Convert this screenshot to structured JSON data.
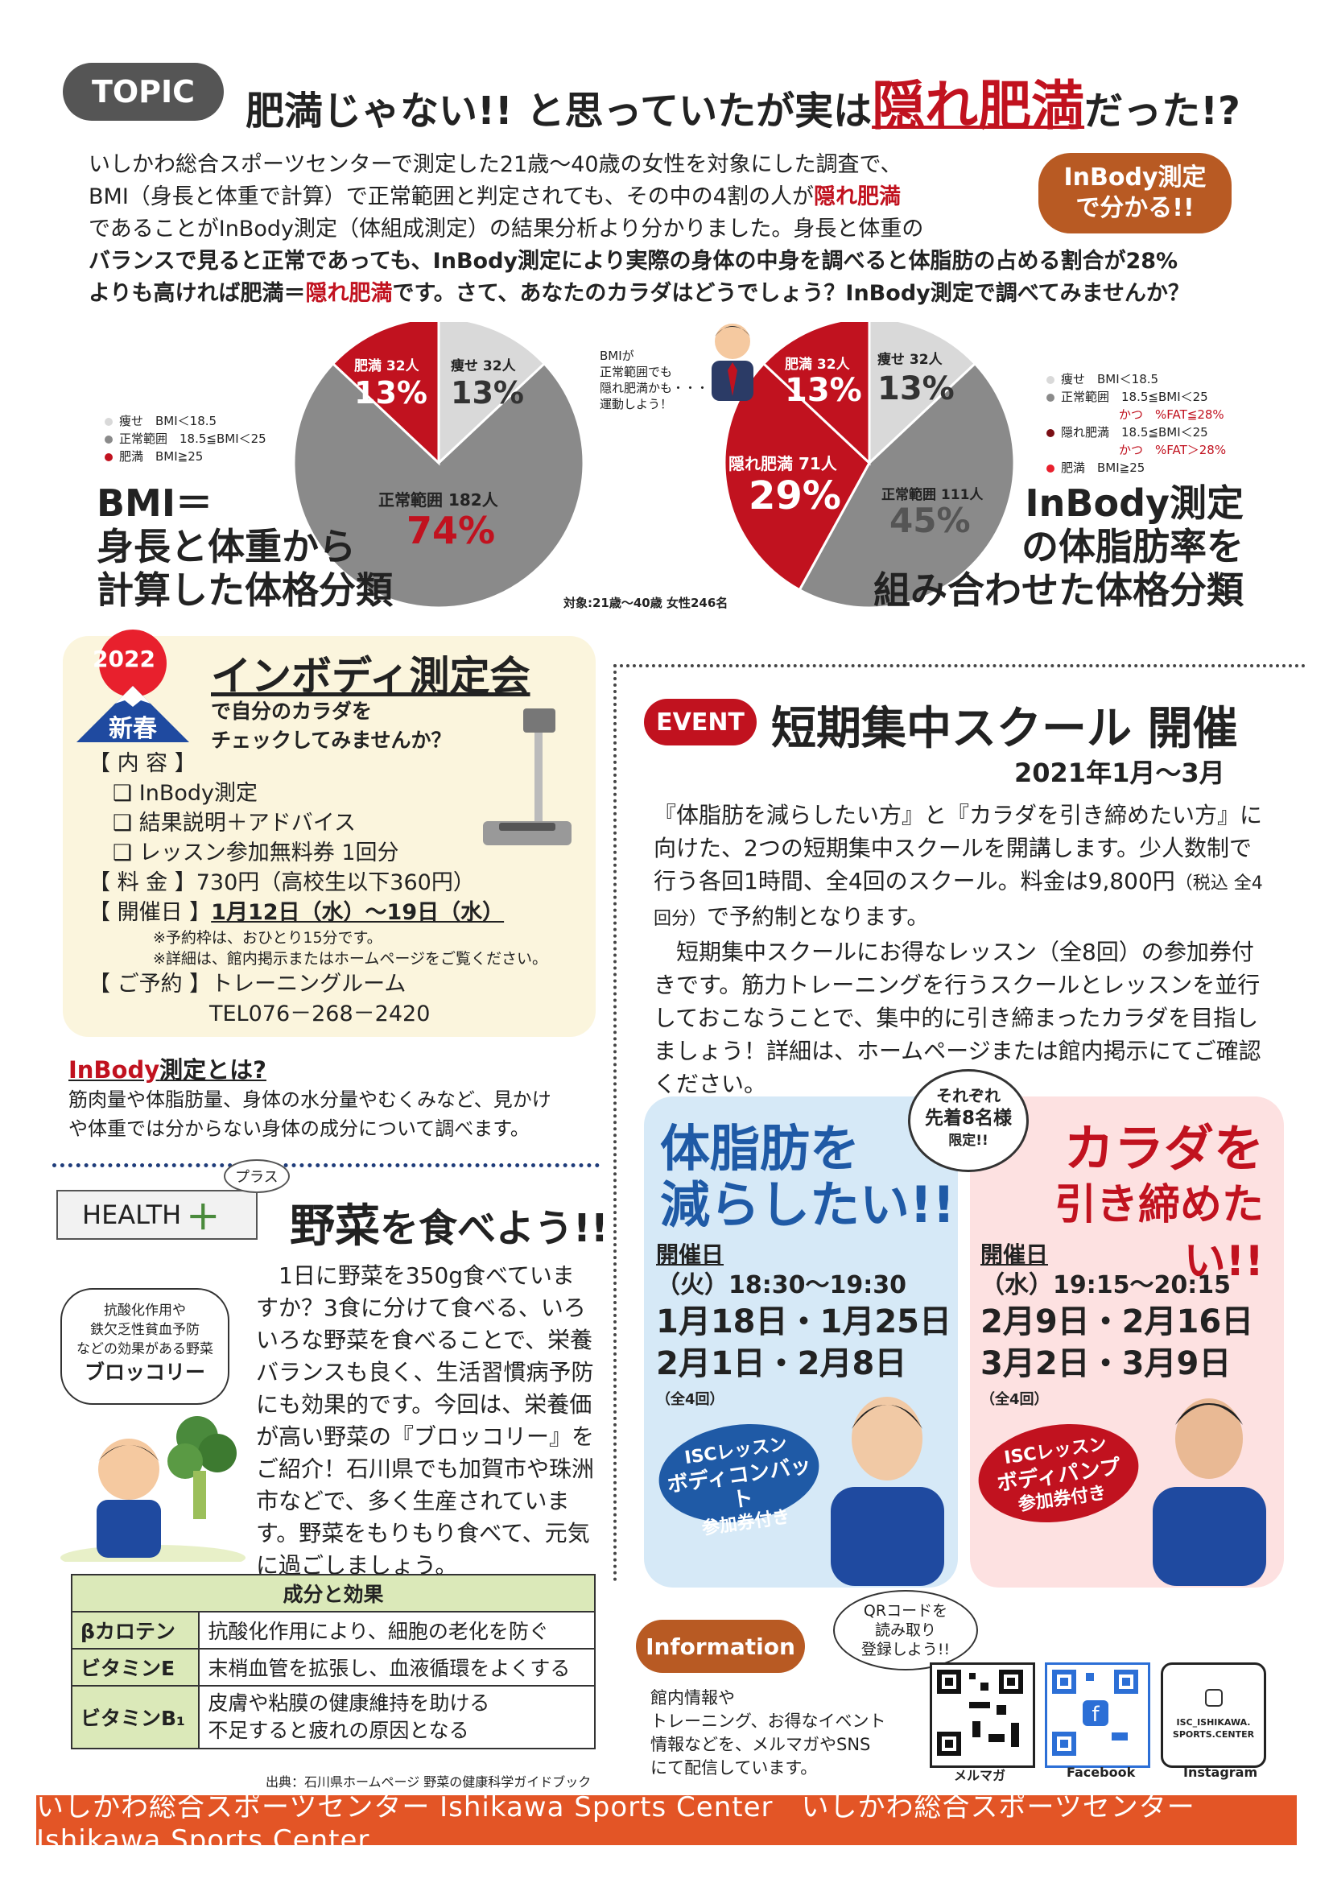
{
  "topic": {
    "badge": "TOPIC",
    "headline_a": "肥満じゃない!! と思っていたが実は",
    "headline_b": "隠れ肥満",
    "headline_c": "だった!?",
    "intro_1": "いしかわ総合スポーツセンターで測定した21歳～40歳の女性を対象にした調査で、",
    "intro_2a": "BMI（身長と体重で計算）で正常範囲と判定されても、その中の4割の人が",
    "intro_2b": "隠れ肥満",
    "intro_3": "であることがInBody測定（体組成測定）の結果分析より分かりました。身長と体重の",
    "intro_4": "バランスで見ると正常であっても、InBody測定により実際の身体の中身を調べると体脂肪の占める割合が28%",
    "intro_5a": "よりも高ければ肥満＝",
    "intro_5b": "隠れ肥満",
    "intro_5c": "です。さて、あなたのカラダはどうでしょう？InBody測定で調べてみませんか？",
    "inbody_badge_1": "InBody測定",
    "inbody_badge_2": "で分かる!!"
  },
  "chart_data": [
    {
      "type": "pie",
      "title": "BMI＝身長と体重から計算した体格分類",
      "slices": [
        {
          "label": "痩せ",
          "count": "32人",
          "value": 13,
          "pct_label": "13%",
          "color": "#d9d9d9"
        },
        {
          "label": "正常範囲",
          "count": "182人",
          "value": 74,
          "pct_label": "74%",
          "color": "#8a8a8a"
        },
        {
          "label": "肥満",
          "count": "32人",
          "value": 13,
          "pct_label": "13%",
          "color": "#c1121f"
        }
      ],
      "legend": [
        "痩せ　BMI＜18.5",
        "正常範囲　18.5≦BMI＜25",
        "肥満　BMI≧25"
      ]
    },
    {
      "type": "pie",
      "title": "InBody測定の体脂肪率を組み合わせた体格分類",
      "slices": [
        {
          "label": "痩せ",
          "count": "32人",
          "value": 13,
          "pct_label": "13%",
          "color": "#d9d9d9"
        },
        {
          "label": "正常範囲",
          "count": "111人",
          "value": 45,
          "pct_label": "45%",
          "color": "#8a8a8a"
        },
        {
          "label": "隠れ肥満",
          "count": "71人",
          "value": 29,
          "pct_label": "29%",
          "color": "#c1121f"
        },
        {
          "label": "肥満",
          "count": "32人",
          "value": 13,
          "pct_label": "13%",
          "color": "#c1121f"
        }
      ],
      "legend": [
        "痩せ　BMI＜18.5",
        "正常範囲　18.5≦BMI＜25",
        "かつ　%FAT≦28%",
        "隠れ肥満　18.5≦BMI＜25",
        "かつ　%FAT＞28%",
        "肥満　BMI≧25"
      ]
    }
  ],
  "pies": {
    "left_title_1": "BMI＝",
    "left_title_2": "身長と体重から",
    "left_title_3": "計算した体格分類",
    "right_title_1": "InBody測定",
    "right_title_2": "の体脂肪率を",
    "right_title_3": "組み合わせた体格分類",
    "target": "対象:21歳～40歳 女性246名",
    "bubble": "BMIが\n正常範囲でも\n隠れ肥満かも・・・\n運動しよう！",
    "fat_le": "%FAT≦28%",
    "fat_gt": "%FAT＞28%"
  },
  "measure": {
    "year": "2022",
    "shinshun": "新春",
    "title": "インボディ測定会",
    "subtitle_1": "で自分のカラダを",
    "subtitle_2": "チェックしてみませんか？",
    "content_label": "【 内 容 】",
    "items": [
      "❑ InBody測定",
      "❑ 結果説明＋アドバイス",
      "❑ レッスン参加無料券 1回分"
    ],
    "fee_label": "【 料 金 】",
    "fee": "730円（高校生以下360円）",
    "date_label": "【 開催日 】",
    "date": "1月12日（水）～19日（水）",
    "note_1": "※予約枠は、おひとり15分です。",
    "note_2": "※詳細は、館内掲示またはホームページをご覧ください。",
    "reserve_label": "【 ご予約 】",
    "reserve": "トレーニングルーム",
    "tel": "TEL076－268－2420"
  },
  "inbody_what": {
    "title_a": "InBody",
    "title_b": "測定とは?",
    "text_1": "筋肉量や体脂肪量、身体の水分量やむくみなど、見かけ",
    "text_2": "や体重では分からない身体の成分について調べます。"
  },
  "event": {
    "badge": "EVENT",
    "title": "短期集中スクール 開催",
    "period": "2021年1月～3月",
    "p1": "『体脂肪を減らしたい方』と『カラダを引き締めたい方』に向けた、2つの短期集中スクールを開講します。少人数制で行う各回1時間、全4回のスクール。料金は9,800円",
    "p1_small": "（税込 全4回分）",
    "p1_end": "で予約制となります。",
    "p2": "　短期集中スクールにお得なレッスン（全8回）の参加券付きです。筋力トレーニングを行うスクールとレッスンを並行しておこなうことで、集中的に引き締まったカラダを目指しましょう！詳細は、ホームページまたは館内掲示にてご確認ください。",
    "limit_1": "それぞれ",
    "limit_2": "先着8名様",
    "limit_3": "限定!!"
  },
  "course_a": {
    "title_1": "体脂肪を",
    "title_2": "減らしたい!!",
    "date_label": "開催日",
    "time": "（火）18:30～19:30",
    "dates_1": "1月18日・1月25日",
    "dates_2": "2月1日・2月8日",
    "count": "（全4回）",
    "ticket_1": "ISCレッスン",
    "ticket_2": "ボディコンバット",
    "ticket_3": "参加券付き"
  },
  "course_b": {
    "title_1": "カラダを",
    "title_2": "引き締めたい!!",
    "date_label": "開催日",
    "time": "（水）19:15～20:15",
    "dates_1": "2月9日・2月16日",
    "dates_2": "3月2日・3月9日",
    "count": "（全4回）",
    "ticket_1": "ISCレッスン",
    "ticket_2": "ボディパンプ",
    "ticket_3": "参加券付き"
  },
  "health": {
    "badge": "HEALTH",
    "plus": "＋",
    "plus_kana": "プラス",
    "title_a": "野菜",
    "title_b": "を食べよう!!",
    "side_1": "抗酸化作用や",
    "side_2": "鉄欠乏性貧血予防",
    "side_3": "などの効果がある野菜",
    "side_name": "ブロッコリー",
    "body": "　1日に野菜を350g食べていますか？3食に分けて食べる、いろいろな野菜を食べることで、栄養バランスも良く、生活習慣病予防にも効果的です。今回は、栄養価が高い野菜の『ブロッコリー』をご紹介！石川県でも加賀市や珠洲市などで、多く生産されています。野菜をもりもり食べて、元気に過ごしましょう。",
    "table_head": "成分と効果",
    "rows": [
      {
        "name": "βカロテン",
        "effect": "抗酸化作用により、細胞の老化を防ぐ"
      },
      {
        "name": "ビタミンE",
        "effect": "末梢血管を拡張し、血液循環をよくする"
      },
      {
        "name": "ビタミンB₁",
        "effect": "皮膚や粘膜の健康維持を助ける\n不足すると疲れの原因となる"
      }
    ],
    "source": "出典：石川県ホームページ 野菜の健康科学ガイドブック"
  },
  "info": {
    "badge": "Information",
    "qr_bubble": "QRコードを\n読み取り\n登録しよう!!",
    "text": "館内情報や\nトレーニング、お得なイベント\n情報などを、メルマガやSNS\nにて配信しています。",
    "qr_labels": [
      "メルマガ",
      "Facebook",
      "Instagram"
    ],
    "insta_handle_1": "ISC_ISHIKAWA.",
    "insta_handle_2": "SPORTS.CENTER"
  },
  "footer": "いしかわ総合スポーツセンター Ishikawa Sports Center　いしかわ総合スポーツセンター Ishikawa Sports Center",
  "colors": {
    "accent_red": "#c1121f",
    "orange": "#e35526",
    "navy": "#1f3c7a",
    "green": "#4a8a3c"
  }
}
